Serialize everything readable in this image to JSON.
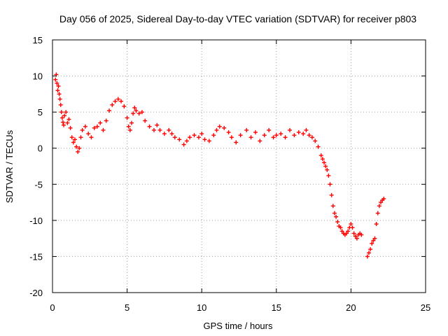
{
  "chart_data": {
    "type": "scatter",
    "title": "Day 056 of 2025, Sidereal Day-to-day VTEC variation (SDTVAR) for receiver p803",
    "xlabel": "GPS time / hours",
    "ylabel": "SDTVAR / TECUs",
    "xlim": [
      0,
      25
    ],
    "ylim": [
      -20,
      15
    ],
    "xticks": [
      0,
      5,
      10,
      15,
      20,
      25
    ],
    "yticks": [
      -20,
      -15,
      -10,
      -5,
      0,
      5,
      10,
      15
    ],
    "grid": true,
    "marker": "+",
    "series": [
      {
        "name": "SDTVAR",
        "color": "#ff0000",
        "x": [
          0.2,
          0.25,
          0.3,
          0.35,
          0.4,
          0.45,
          0.5,
          0.55,
          0.6,
          0.65,
          0.7,
          0.75,
          0.8,
          0.9,
          1.0,
          1.1,
          1.2,
          1.3,
          1.4,
          1.5,
          1.6,
          1.7,
          1.8,
          1.9,
          2.0,
          2.2,
          2.4,
          2.6,
          2.8,
          3.0,
          3.2,
          3.4,
          3.6,
          3.8,
          4.0,
          4.2,
          4.4,
          4.6,
          4.8,
          5.0,
          5.1,
          5.2,
          5.3,
          5.4,
          5.5,
          5.6,
          5.8,
          6.0,
          6.2,
          6.5,
          6.8,
          7.0,
          7.2,
          7.5,
          7.8,
          8.0,
          8.2,
          8.5,
          8.8,
          9.0,
          9.2,
          9.5,
          9.8,
          10.0,
          10.2,
          10.5,
          10.8,
          11.0,
          11.2,
          11.5,
          11.8,
          12.0,
          12.3,
          12.6,
          13.0,
          13.3,
          13.6,
          13.9,
          14.2,
          14.5,
          14.8,
          15.0,
          15.3,
          15.6,
          15.9,
          16.2,
          16.5,
          16.8,
          17.0,
          17.2,
          17.4,
          17.6,
          17.8,
          18.0,
          18.1,
          18.2,
          18.3,
          18.4,
          18.5,
          18.6,
          18.7,
          18.8,
          18.9,
          19.0,
          19.1,
          19.2,
          19.3,
          19.4,
          19.5,
          19.6,
          19.7,
          19.8,
          19.9,
          20.0,
          20.1,
          20.2,
          20.3,
          20.4,
          20.5,
          20.6,
          20.7,
          21.1,
          21.2,
          21.3,
          21.4,
          21.5,
          21.6,
          21.7,
          21.8,
          21.9,
          22.0,
          22.1,
          22.2
        ],
        "y": [
          9.5,
          10.2,
          9.0,
          8.0,
          8.6,
          7.5,
          6.8,
          6.0,
          5.0,
          4.2,
          3.6,
          3.2,
          4.5,
          5.0,
          3.5,
          4.0,
          2.8,
          1.5,
          0.8,
          1.2,
          0.2,
          -0.5,
          0.0,
          1.5,
          2.5,
          3.0,
          2.0,
          1.5,
          2.8,
          3.0,
          3.5,
          2.5,
          3.8,
          5.2,
          6.0,
          6.5,
          6.8,
          6.5,
          5.8,
          4.2,
          3.0,
          2.5,
          3.5,
          4.8,
          5.6,
          5.2,
          4.8,
          5.0,
          3.8,
          3.0,
          2.5,
          3.2,
          2.5,
          2.0,
          2.5,
          2.0,
          1.5,
          1.2,
          0.5,
          1.0,
          1.5,
          1.8,
          1.5,
          2.0,
          1.2,
          1.0,
          1.8,
          2.5,
          3.0,
          2.8,
          2.2,
          1.5,
          0.8,
          1.8,
          2.5,
          1.5,
          2.2,
          1.0,
          1.8,
          2.5,
          1.5,
          1.8,
          2.0,
          1.5,
          2.5,
          1.8,
          2.2,
          2.0,
          2.5,
          1.8,
          1.5,
          1.0,
          0.2,
          -1.0,
          -1.5,
          -2.0,
          -2.5,
          -3.0,
          -3.8,
          -5.0,
          -6.5,
          -8.0,
          -9.0,
          -9.5,
          -10.2,
          -10.8,
          -11.0,
          -11.5,
          -11.8,
          -12.0,
          -11.8,
          -11.5,
          -11.0,
          -10.5,
          -11.0,
          -11.8,
          -12.2,
          -12.5,
          -12.0,
          -11.8,
          -12.0,
          -15.0,
          -14.5,
          -14.0,
          -13.2,
          -12.8,
          -12.5,
          -10.5,
          -9.0,
          -8.0,
          -7.5,
          -7.2,
          -7.0
        ]
      }
    ]
  }
}
